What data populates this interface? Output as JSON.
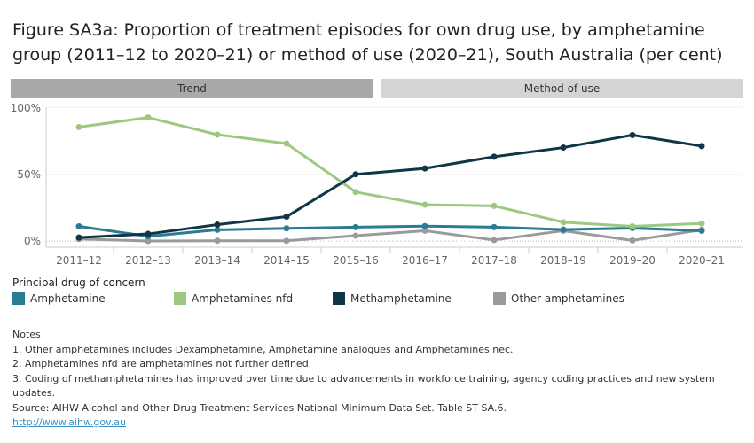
{
  "title": "Figure SA3a: Proportion of treatment episodes for own drug use, by amphetamine group (2011–12 to 2020–21) or method of use (2020–21),  South Australia (per cent)",
  "tabs": [
    {
      "label": "Trend",
      "color": "#a9a9a9"
    },
    {
      "label": "Method of use",
      "color": "#d4d4d4"
    }
  ],
  "chart_data": {
    "type": "line",
    "categories": [
      "2011–12",
      "2012–13",
      "2013–14",
      "2014–15",
      "2015–16",
      "2016–17",
      "2017–18",
      "2018–19",
      "2019–20",
      "2020–21"
    ],
    "ylim": [
      0,
      100
    ],
    "yticks": [
      {
        "v": 0,
        "label": "0%"
      },
      {
        "v": 50,
        "label": "50%"
      },
      {
        "v": 100,
        "label": "100%"
      }
    ],
    "grid": true,
    "legend_title": "Principal drug of concern",
    "legend_placement": "bottom",
    "series": [
      {
        "name": "Amphetamine",
        "color": "#2a7b94",
        "values": [
          11,
          3.5,
          8.4,
          9.5,
          10.4,
          11.2,
          10.4,
          8.6,
          9.7,
          7.7
        ]
      },
      {
        "name": "Amphetamines nfd",
        "color": "#9dc880",
        "values": [
          85.7,
          92.9,
          80,
          73.3,
          36.8,
          27.3,
          26.4,
          14.1,
          11,
          13.2
        ]
      },
      {
        "name": "Methamphetamine",
        "color": "#0f3547",
        "values": [
          2.6,
          5.3,
          12.3,
          18.3,
          50.2,
          54.6,
          63.4,
          70.3,
          79.7,
          71.4
        ]
      },
      {
        "name": "Other amphetamines",
        "color": "#9a9a9a",
        "values": [
          1.5,
          0,
          0.2,
          0.2,
          4,
          7.7,
          0.7,
          7.7,
          0.4,
          8.4
        ]
      }
    ]
  },
  "notes": {
    "heading": "Notes",
    "lines": [
      "1. Other amphetamines includes Dexamphetamine, Amphetamine analogues and Amphetamines nec.",
      "2. Amphetamines nfd are amphetamines not further defined.",
      "3. Coding of methamphetamines has improved over time due to advancements in workforce training, agency coding practices and new system updates.",
      "Source: AIHW Alcohol and Other Drug Treatment Services National Minimum Data Set. Table ST SA.6."
    ],
    "link": "http://www.aihw.gov.au"
  }
}
